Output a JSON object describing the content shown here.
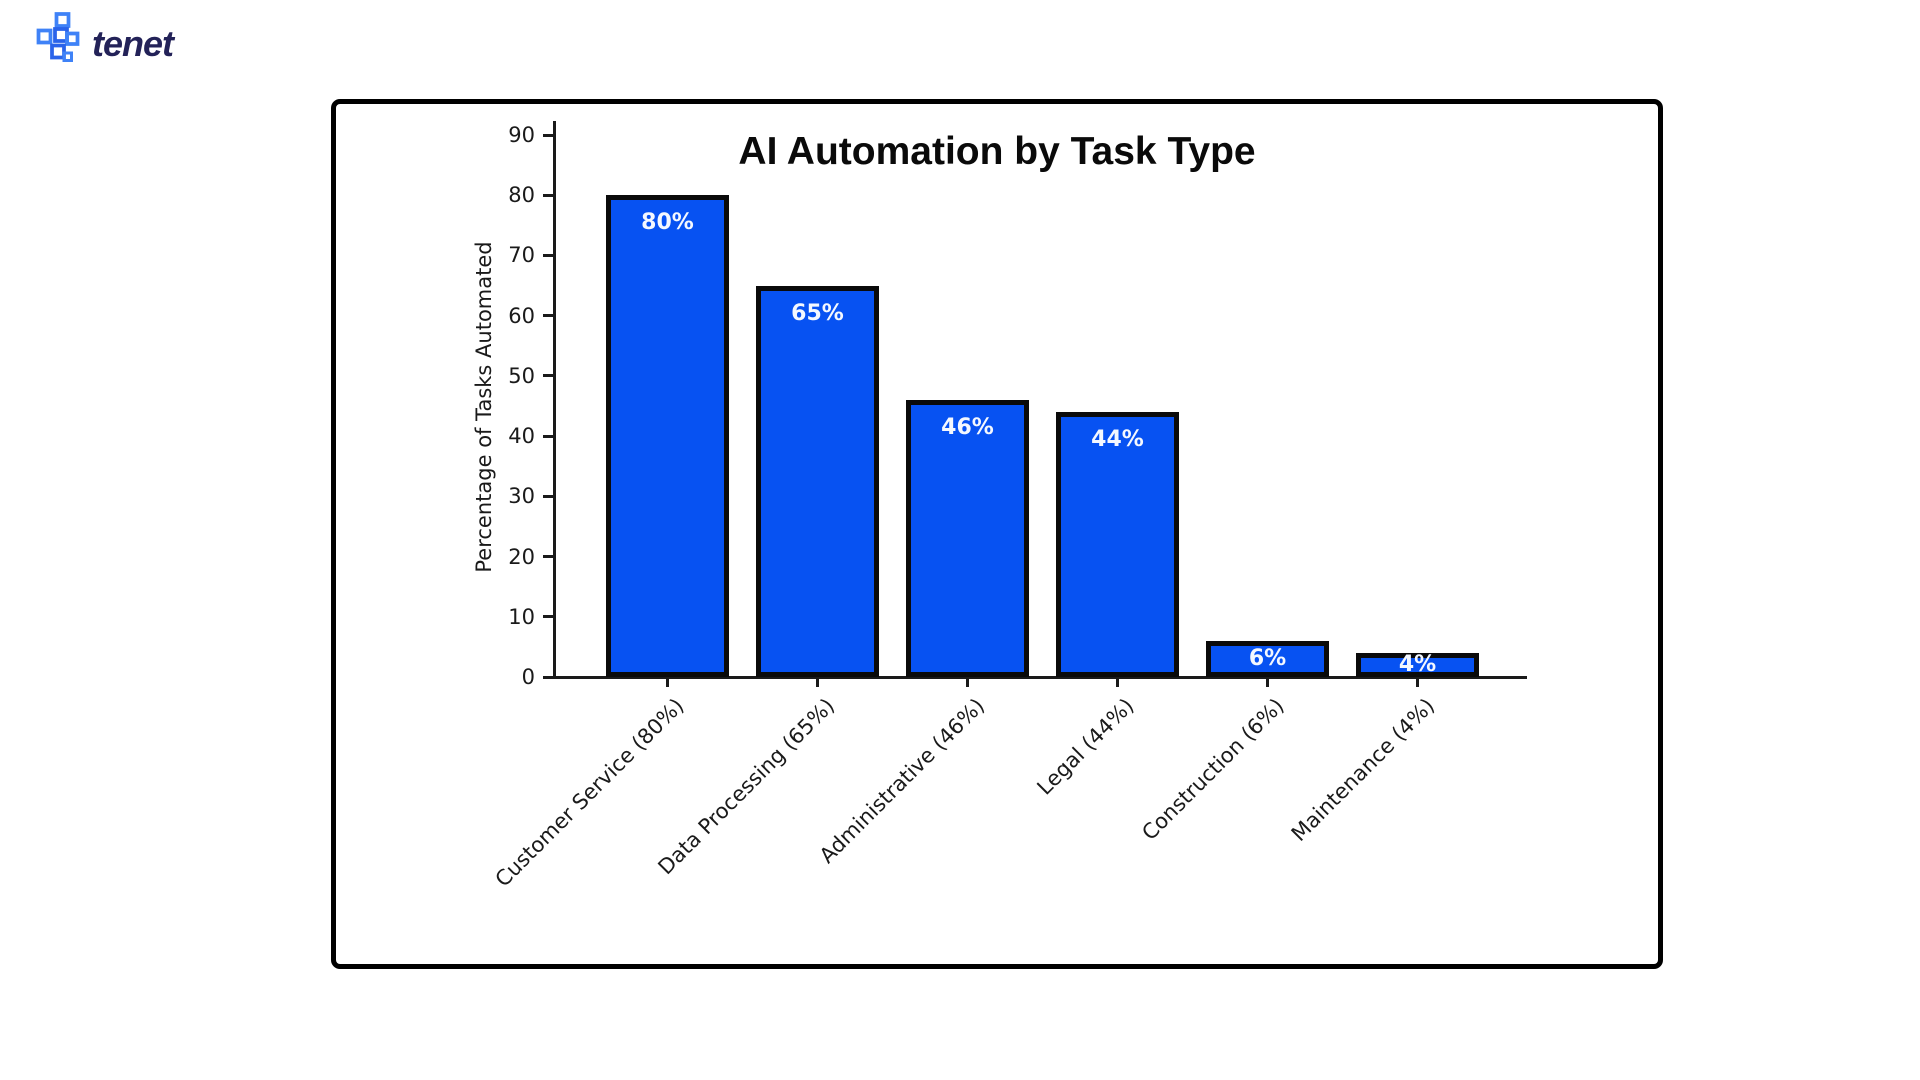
{
  "logo": {
    "text": "tenet",
    "icon": "tenet-pixel-cross-icon",
    "text_color": "#232258",
    "icon_colors": [
      "#3f82f7",
      "#2a63ea"
    ]
  },
  "chart_card": {
    "background": "#ffffff",
    "border_color": "#000000"
  },
  "chart_data": {
    "type": "bar",
    "title": "AI Automation by Task Type",
    "xlabel": "",
    "ylabel": "Percentage of Tasks Automated",
    "categories": [
      "Customer Service (80%)",
      "Data Processing (65%)",
      "Administrative (46%)",
      "Legal (44%)",
      "Construction (6%)",
      "Maintenance (4%)"
    ],
    "values": [
      80,
      65,
      46,
      44,
      6,
      4
    ],
    "bar_labels": [
      "80%",
      "65%",
      "46%",
      "44%",
      "6%",
      "4%"
    ],
    "bar_color": "#0752f2",
    "bar_edge_color": "#0a0a0a",
    "label_text_color": "#f4f8ff",
    "ylim": [
      0,
      90
    ],
    "yticks": [
      0,
      10,
      20,
      30,
      40,
      50,
      60,
      70,
      80,
      90
    ],
    "x_tick_rotation_deg": 45,
    "grid": false,
    "legend": null
  }
}
